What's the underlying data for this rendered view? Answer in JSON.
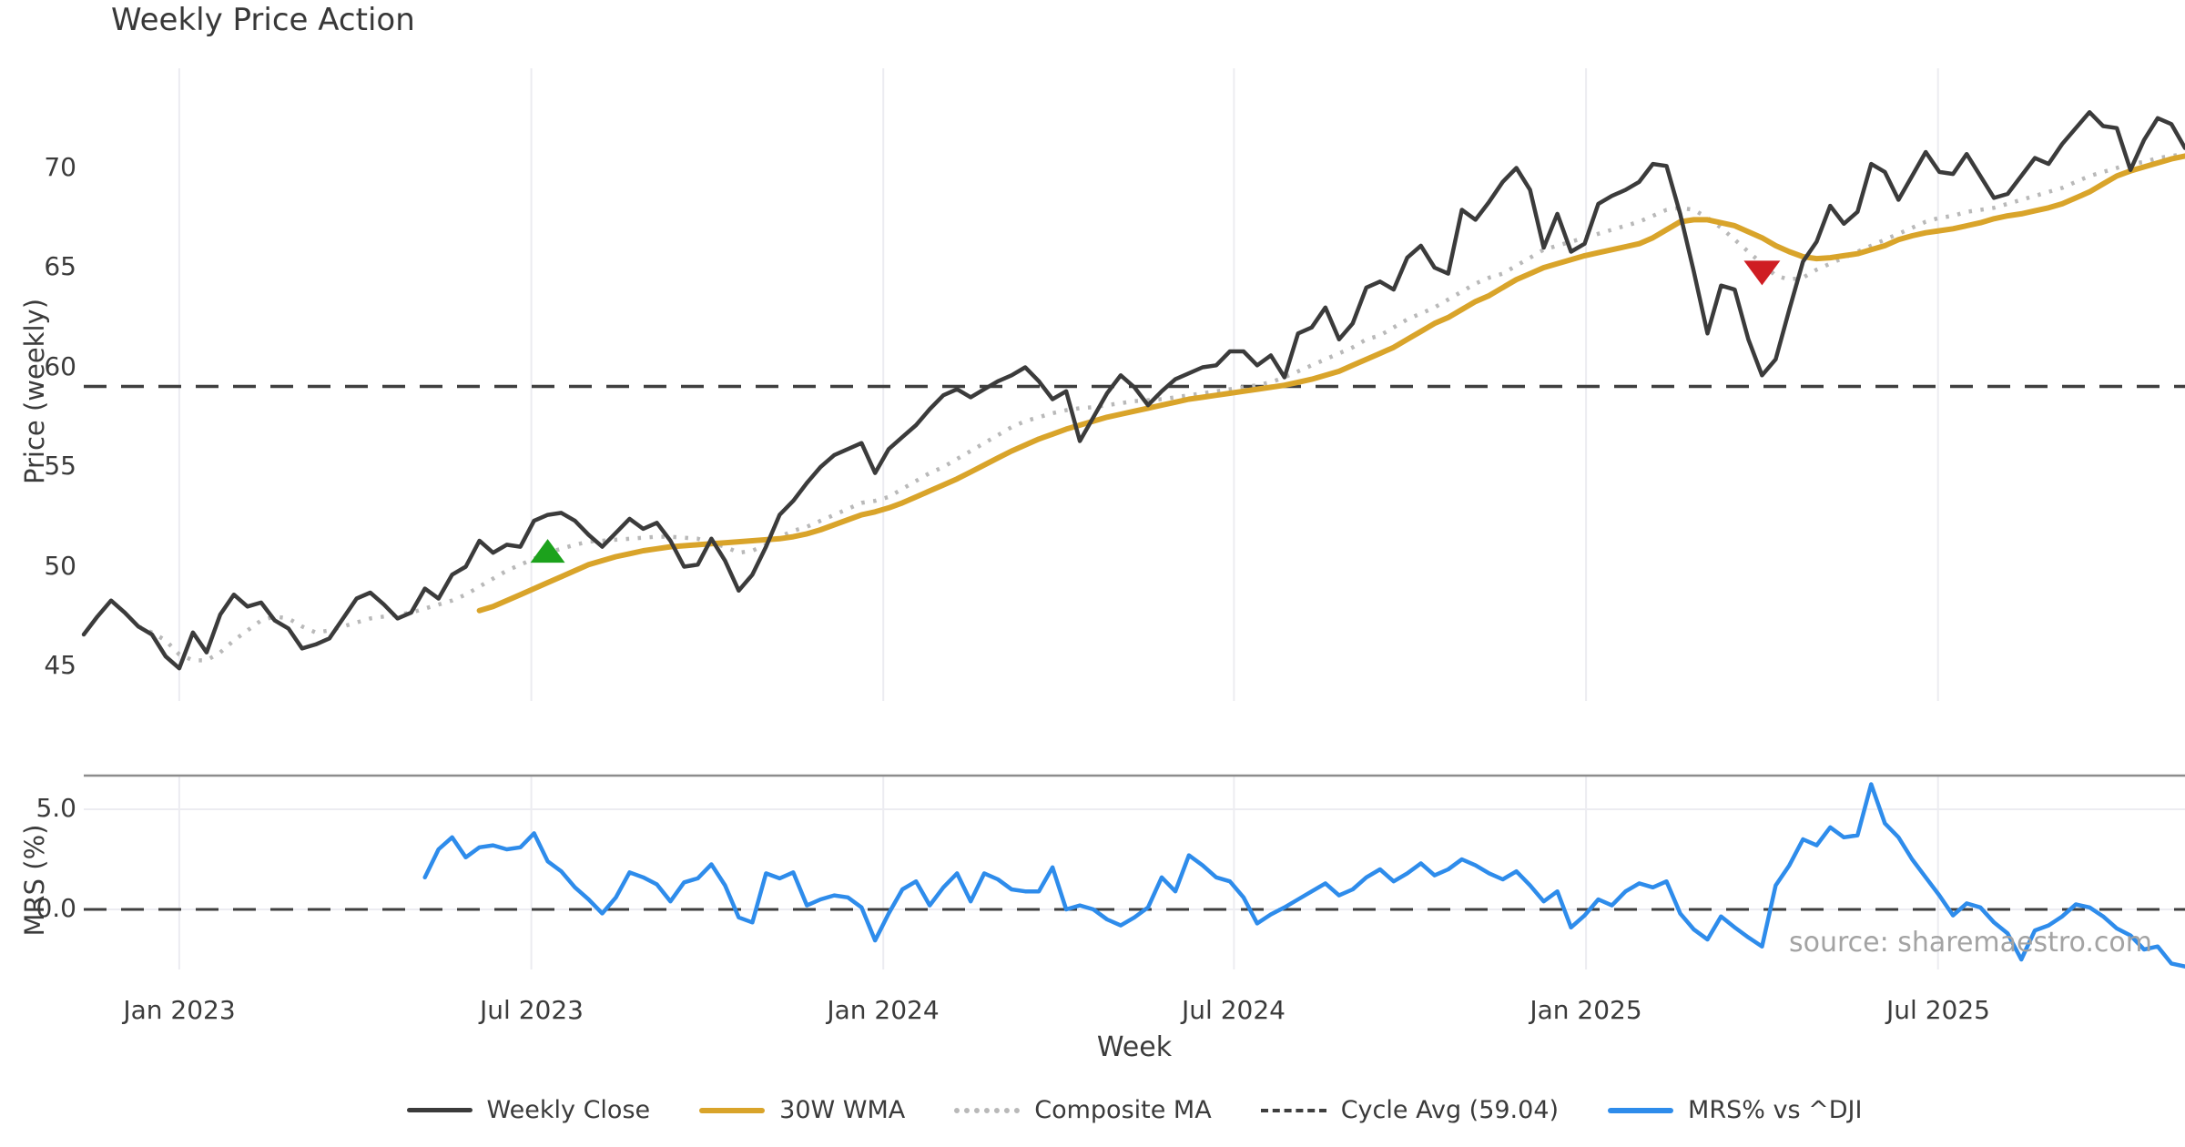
{
  "title": "Weekly Price Action",
  "watermark": "source: sharemaestro.com",
  "colors": {
    "weekly_close": "#3b3b3b",
    "wma_30w": "#d9a42a",
    "composite_ma": "#b9b9b9",
    "cycle_avg": "#3f3f3f",
    "mrs": "#2e8ceb",
    "buy_marker": "#1ca21c",
    "sell_marker": "#cf1d23",
    "gridline": "#ececf1",
    "spine": "#8c8c8c",
    "text": "#3b3b3b",
    "watermark_text": "#a3a3a3"
  },
  "legend": {
    "items": [
      {
        "label": "Weekly Close",
        "style": "solid-dark"
      },
      {
        "label": "30W WMA",
        "style": "solid-gold"
      },
      {
        "label": "Composite MA",
        "style": "dotted-gray"
      },
      {
        "label": "Cycle Avg (59.04)",
        "style": "dashed-dark"
      },
      {
        "label": "MRS% vs ^DJI",
        "style": "solid-blue"
      }
    ]
  },
  "chart_data": {
    "type": "line",
    "title": "Weekly Price Action",
    "xlabel": "Week",
    "x_tick_labels": [
      "Jan 2023",
      "Jul 2023",
      "Jan 2024",
      "Jul 2024",
      "Jan 2025",
      "Jul 2025"
    ],
    "x_tick_indices": [
      7.0,
      32.8,
      58.6,
      84.3,
      110.1,
      135.9
    ],
    "weeks_total": 155,
    "grid": "vertical-light",
    "legend_position": "bottom-center",
    "panels": [
      {
        "name": "price",
        "ylabel": "Price (weekly)",
        "ylim": [
          43.5,
          74.5
        ],
        "yticks": [
          45,
          50,
          55,
          60,
          65,
          70
        ],
        "ytick_labels": [
          "45",
          "50",
          "55",
          "60",
          "65",
          "70"
        ],
        "cycle_avg_value": 59.04,
        "series": [
          {
            "name": "Weekly Close",
            "style": "solid",
            "color": "#3b3b3b",
            "start_index": 0,
            "values": [
              46.6,
              47.5,
              48.3,
              47.7,
              47.0,
              46.6,
              45.5,
              44.9,
              46.7,
              45.7,
              47.6,
              48.6,
              48.0,
              48.2,
              47.3,
              46.9,
              45.9,
              46.1,
              46.4,
              47.4,
              48.4,
              48.7,
              48.1,
              47.4,
              47.7,
              48.9,
              48.4,
              49.6,
              50.0,
              51.3,
              50.7,
              51.1,
              51.0,
              52.3,
              52.6,
              52.7,
              52.3,
              51.6,
              51.0,
              51.7,
              52.4,
              51.9,
              52.2,
              51.3,
              50.0,
              50.1,
              51.4,
              50.3,
              48.8,
              49.6,
              51.0,
              52.6,
              53.3,
              54.2,
              55.0,
              55.6,
              55.9,
              56.2,
              54.7,
              55.9,
              56.5,
              57.1,
              57.9,
              58.6,
              58.9,
              58.5,
              58.9,
              59.3,
              59.6,
              60.0,
              59.3,
              58.4,
              58.8,
              56.3,
              57.5,
              58.7,
              59.6,
              59.0,
              58.1,
              58.8,
              59.4,
              59.7,
              60.0,
              60.1,
              60.8,
              60.8,
              60.1,
              60.6,
              59.5,
              61.7,
              62.0,
              63.0,
              61.4,
              62.2,
              64.0,
              64.3,
              63.9,
              65.5,
              66.1,
              65.0,
              64.7,
              67.9,
              67.4,
              68.3,
              69.3,
              70.0,
              68.9,
              66.0,
              67.7,
              65.8,
              66.2,
              68.2,
              68.6,
              68.9,
              69.3,
              70.2,
              70.1,
              67.7,
              64.8,
              61.7,
              64.1,
              63.9,
              61.4,
              59.6,
              60.4,
              62.9,
              65.3,
              66.3,
              68.1,
              67.2,
              67.8,
              70.2,
              69.8,
              68.4,
              69.6,
              70.8,
              69.8,
              69.7,
              70.7,
              69.6,
              68.5,
              68.7,
              69.6,
              70.5,
              70.2,
              71.2,
              72.0,
              72.8,
              72.1,
              72.0,
              69.9,
              71.4,
              72.5,
              72.2,
              71.0
            ]
          },
          {
            "name": "30W WMA",
            "style": "solid",
            "color": "#d9a42a",
            "start_index": 29,
            "values": [
              47.8,
              48.0,
              48.3,
              48.6,
              48.9,
              49.2,
              49.5,
              49.8,
              50.1,
              50.3,
              50.5,
              50.65,
              50.8,
              50.9,
              51.0,
              51.05,
              51.1,
              51.15,
              51.2,
              51.25,
              51.3,
              51.35,
              51.4,
              51.5,
              51.65,
              51.85,
              52.1,
              52.35,
              52.6,
              52.75,
              52.95,
              53.2,
              53.5,
              53.8,
              54.1,
              54.4,
              54.75,
              55.1,
              55.45,
              55.8,
              56.1,
              56.4,
              56.65,
              56.9,
              57.1,
              57.3,
              57.5,
              57.65,
              57.8,
              57.95,
              58.1,
              58.25,
              58.4,
              58.5,
              58.6,
              58.7,
              58.8,
              58.9,
              59.0,
              59.1,
              59.25,
              59.4,
              59.6,
              59.8,
              60.1,
              60.4,
              60.7,
              61.0,
              61.4,
              61.8,
              62.2,
              62.5,
              62.9,
              63.3,
              63.6,
              64.0,
              64.4,
              64.7,
              65.0,
              65.2,
              65.4,
              65.6,
              65.75,
              65.9,
              66.05,
              66.2,
              66.5,
              66.9,
              67.3,
              67.4,
              67.4,
              67.25,
              67.1,
              66.8,
              66.5,
              66.1,
              65.8,
              65.55,
              65.45,
              65.5,
              65.6,
              65.7,
              65.9,
              66.1,
              66.4,
              66.6,
              66.75,
              66.85,
              66.95,
              67.1,
              67.25,
              67.45,
              67.6,
              67.7,
              67.85,
              68.0,
              68.2,
              68.5,
              68.8,
              69.2,
              69.6,
              69.85,
              70.05,
              70.25,
              70.45,
              70.6
            ]
          },
          {
            "name": "Composite MA",
            "style": "dotted",
            "color": "#b9b9b9",
            "start_index": 4,
            "values": [
              47.0,
              46.7,
              46.3,
              45.6,
              45.3,
              45.3,
              45.7,
              46.3,
              46.8,
              47.3,
              47.5,
              47.4,
              47.0,
              46.7,
              46.8,
              47.0,
              47.2,
              47.4,
              47.5,
              47.6,
              47.7,
              47.9,
              48.1,
              48.3,
              48.6,
              49.0,
              49.4,
              49.8,
              50.1,
              50.4,
              50.7,
              50.9,
              51.1,
              51.25,
              51.3,
              51.35,
              51.4,
              51.45,
              51.5,
              51.5,
              51.45,
              51.4,
              51.2,
              51.0,
              50.7,
              50.8,
              51.1,
              51.5,
              51.8,
              52.0,
              52.3,
              52.6,
              52.9,
              53.2,
              53.3,
              53.5,
              53.9,
              54.3,
              54.7,
              55.0,
              55.4,
              55.8,
              56.2,
              56.6,
              57.0,
              57.3,
              57.5,
              57.7,
              57.85,
              57.95,
              58.0,
              58.1,
              58.2,
              58.3,
              58.35,
              58.4,
              58.5,
              58.6,
              58.7,
              58.8,
              58.9,
              59.0,
              59.1,
              59.25,
              59.5,
              59.8,
              60.1,
              60.4,
              60.7,
              61.0,
              61.4,
              61.6,
              62.0,
              62.4,
              62.7,
              63.0,
              63.4,
              63.8,
              64.2,
              64.5,
              64.7,
              65.1,
              65.5,
              65.9,
              66.1,
              66.3,
              66.5,
              66.7,
              66.9,
              67.1,
              67.3,
              67.6,
              67.9,
              68.0,
              67.9,
              67.5,
              67.0,
              66.4,
              65.8,
              65.2,
              64.6,
              64.4,
              64.5,
              64.9,
              65.2,
              65.5,
              65.8,
              66.1,
              66.4,
              66.7,
              67.0,
              67.3,
              67.5,
              67.6,
              67.8,
              67.9,
              68.0,
              68.2,
              68.4,
              68.6,
              68.8,
              69.0,
              69.3,
              69.6,
              69.8,
              70.0,
              70.2,
              70.3,
              70.5,
              70.6,
              70.7
            ]
          }
        ],
        "markers": [
          {
            "type": "buy-triangle-up",
            "week_index": 34,
            "price": 50.7,
            "color": "#1ca21c"
          },
          {
            "type": "sell-triangle-down",
            "week_index": 123,
            "price": 64.8,
            "color": "#cf1d23"
          }
        ]
      },
      {
        "name": "mrs",
        "ylabel": "MRS (%)",
        "ylim": [
          -3.3,
          6.7
        ],
        "yticks": [
          0.0,
          5.0
        ],
        "ytick_labels": [
          "0.0",
          "5.0"
        ],
        "zero_line": 0.0,
        "series": [
          {
            "name": "MRS% vs ^DJI",
            "style": "solid",
            "color": "#2e8ceb",
            "start_index": 25,
            "values": [
              1.6,
              3.0,
              3.6,
              2.6,
              3.1,
              3.2,
              3.0,
              3.1,
              3.8,
              2.4,
              1.9,
              1.1,
              0.5,
              -0.2,
              0.6,
              1.85,
              1.6,
              1.25,
              0.4,
              1.35,
              1.55,
              2.25,
              1.2,
              -0.4,
              -0.65,
              1.8,
              1.55,
              1.85,
              0.2,
              0.5,
              0.7,
              0.6,
              0.1,
              -1.55,
              -0.2,
              1.0,
              1.4,
              0.2,
              1.1,
              1.8,
              0.4,
              1.8,
              1.5,
              1.0,
              0.9,
              0.9,
              2.1,
              0.0,
              0.2,
              0.0,
              -0.5,
              -0.8,
              -0.4,
              0.1,
              1.6,
              0.9,
              2.7,
              2.2,
              1.6,
              1.4,
              0.6,
              -0.7,
              -0.25,
              0.1,
              0.5,
              0.9,
              1.3,
              0.7,
              1.0,
              1.6,
              2.0,
              1.4,
              1.8,
              2.3,
              1.7,
              2.0,
              2.5,
              2.2,
              1.8,
              1.5,
              1.9,
              1.2,
              0.4,
              0.9,
              -0.9,
              -0.3,
              0.5,
              0.2,
              0.9,
              1.3,
              1.1,
              1.4,
              -0.2,
              -1.0,
              -1.5,
              -0.35,
              -0.9,
              -1.4,
              -1.85,
              1.2,
              2.2,
              3.5,
              3.2,
              4.1,
              3.6,
              3.7,
              6.25,
              4.3,
              3.6,
              2.5,
              1.6,
              0.7,
              -0.3,
              0.3,
              0.1,
              -0.65,
              -1.2,
              -2.5,
              -1.05,
              -0.8,
              -0.35,
              0.25,
              0.1,
              -0.35,
              -0.95,
              -1.3,
              -2.0,
              -1.85,
              -2.7,
              -2.85
            ]
          }
        ]
      }
    ]
  }
}
